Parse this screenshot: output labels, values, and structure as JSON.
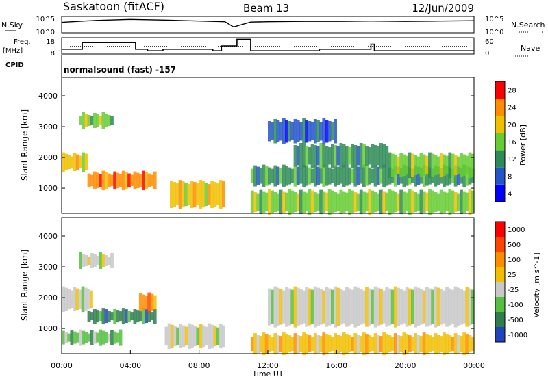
{
  "header": {
    "title": "Saskatoon (fitACF)",
    "beam": "Beam 13",
    "date": "12/Jun/2009"
  },
  "chart_data": [
    {
      "type": "line",
      "panel": "noise",
      "left_label": "N.Sky",
      "right_label": "N.Search",
      "left_ticks": [
        "10^5",
        "10^0"
      ],
      "right_ticks": [
        "10^5",
        "10^0"
      ],
      "x": [
        "00:00",
        "02:00",
        "04:00",
        "06:00",
        "08:00",
        "09:30",
        "10:00",
        "11:00",
        "12:00",
        "14:00",
        "16:00",
        "18:00",
        "20:00",
        "22:00",
        "24:00"
      ],
      "series": [
        {
          "values": [
            3.2,
            3.8,
            4.1,
            3.9,
            3.6,
            3.4,
            1.8,
            3.3,
            3.4,
            3.5,
            3.5,
            3.6,
            3.5,
            3.6,
            3.7
          ]
        }
      ]
    },
    {
      "type": "line",
      "panel": "frequency",
      "left_label": "Freq.",
      "left_unit": "[MHz]",
      "right_label": "Nave",
      "left_ticks": [
        "18",
        "8"
      ],
      "right_ticks": [
        "60",
        "0"
      ],
      "x_hours": [
        0,
        1.2,
        1.2,
        4.3,
        4.3,
        5.0,
        5.0,
        5.9,
        5.9,
        8.8,
        8.8,
        9.3,
        9.3,
        10.2,
        10.2,
        11.0,
        11.0,
        15.0,
        15.0,
        18.0,
        18.0,
        18.2,
        18.2,
        24.0
      ],
      "freq_mhz": [
        11,
        11,
        15,
        15,
        11,
        11,
        10,
        10,
        11,
        11,
        10,
        10,
        13,
        13,
        17,
        17,
        10,
        10,
        11,
        11,
        14,
        14,
        10,
        10
      ],
      "nave_level": 28
    },
    {
      "type": "heatmap",
      "panel": "power",
      "cpid": "CPID",
      "mode": "normalsound (fast) -157",
      "ylabel": "Slant Range [km]",
      "yticks": [
        "1000",
        "2000",
        "3000",
        "4000"
      ],
      "ylim": [
        180,
        4600
      ],
      "colorbar_label": "Power [dB]",
      "colorbar_ticks": [
        "4",
        "8",
        "12",
        "16",
        "20",
        "24",
        "28"
      ],
      "colorbar_colors": [
        "#0000ff",
        "#2255c8",
        "#2e8b57",
        "#66cc33",
        "#f0c000",
        "#ff8c00",
        "#ff0000"
      ],
      "range_bands_km": [
        {
          "t0": 0.0,
          "t1": 1.5,
          "r0": 1600,
          "r1": 2100,
          "level": 4
        },
        {
          "t0": 1.5,
          "t1": 5.5,
          "r0": 1000,
          "r1": 1500,
          "level": 5
        },
        {
          "t0": 6.3,
          "t1": 9.5,
          "r0": 400,
          "r1": 1200,
          "level": 4
        },
        {
          "t0": 1.0,
          "t1": 3.0,
          "r0": 3000,
          "r1": 3400,
          "level": 3
        },
        {
          "t0": 11.0,
          "t1": 24.0,
          "r0": 200,
          "r1": 900,
          "level": 3
        },
        {
          "t0": 11.0,
          "t1": 24.0,
          "r0": 1100,
          "r1": 1700,
          "level": 2
        },
        {
          "t0": 13.5,
          "t1": 19.0,
          "r0": 1700,
          "r1": 2400,
          "level": 2
        },
        {
          "t0": 19.0,
          "t1": 24.0,
          "r0": 1400,
          "r1": 2100,
          "level": 3
        },
        {
          "t0": 12.0,
          "t1": 16.0,
          "r0": 2500,
          "r1": 3200,
          "level": 1
        }
      ]
    },
    {
      "type": "heatmap",
      "panel": "velocity",
      "ylabel": "Slant Range [km]",
      "yticks": [
        "1000",
        "2000",
        "3000",
        "4000"
      ],
      "ylim": [
        180,
        4600
      ],
      "xlabel": "Time UT",
      "xticks": [
        "00:00",
        "04:00",
        "08:00",
        "12:00",
        "16:00",
        "20:00",
        "00:00"
      ],
      "colorbar_label": "Velocity [m s^-1]",
      "colorbar_ticks": [
        "1000",
        "500",
        "100",
        "25",
        "-25",
        "-100",
        "-500",
        "-1000"
      ],
      "colorbar_colors": [
        "#2244bb",
        "#2e7d4f",
        "#55c040",
        "#c8c8c8",
        "#f0c000",
        "#ff8c00",
        "#ff4400",
        "#ff0000"
      ],
      "range_bands_km": [
        {
          "t0": 0.0,
          "t1": 1.8,
          "r0": 1600,
          "r1": 2300,
          "level": 3
        },
        {
          "t0": 1.5,
          "t1": 5.5,
          "r0": 1200,
          "r1": 1600,
          "level": 1
        },
        {
          "t0": 4.5,
          "t1": 5.5,
          "r0": 1600,
          "r1": 2100,
          "level": 5
        },
        {
          "t0": 6.0,
          "t1": 9.5,
          "r0": 400,
          "r1": 1100,
          "level": 3
        },
        {
          "t0": 0.0,
          "t1": 3.5,
          "r0": 500,
          "r1": 900,
          "level": 2
        },
        {
          "t0": 11.0,
          "t1": 24.0,
          "r0": 200,
          "r1": 800,
          "level": 4
        },
        {
          "t0": 12.0,
          "t1": 24.0,
          "r0": 1100,
          "r1": 2300,
          "level": 3
        },
        {
          "t0": 1.0,
          "t1": 3.0,
          "r0": 3000,
          "r1": 3400,
          "level": 3
        }
      ]
    }
  ]
}
